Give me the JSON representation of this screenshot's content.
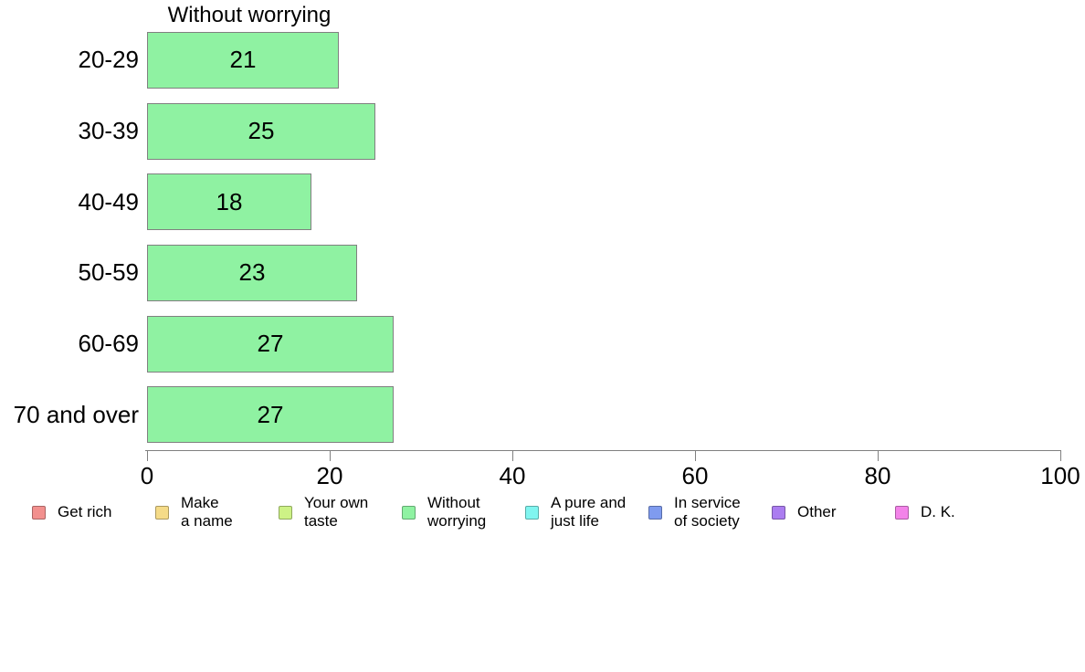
{
  "chart_data": {
    "type": "bar",
    "orientation": "horizontal",
    "title": "Without worrying",
    "categories": [
      "20-29",
      "30-39",
      "40-49",
      "50-59",
      "60-69",
      "70 and over"
    ],
    "values": [
      21,
      25,
      18,
      23,
      27,
      27
    ],
    "xlabel": "",
    "ylabel": "",
    "xlim": [
      0,
      100
    ],
    "xticks": [
      0,
      20,
      40,
      60,
      80,
      100
    ],
    "grid": false,
    "value_labels_shown": true,
    "bar_color": "#8ff2a2",
    "bar_border_color": "#808080",
    "axis_color": "#808080",
    "text_color": "#000000",
    "legend_position": "bottom",
    "legend": [
      {
        "label": "Get rich",
        "color": "#f2908e"
      },
      {
        "label": "Make\na name",
        "color": "#f5db88"
      },
      {
        "label": "Your own\ntaste",
        "color": "#cdf286"
      },
      {
        "label": "Without\nworrying",
        "color": "#8ff2a2"
      },
      {
        "label": "A pure and\njust life",
        "color": "#80f5f0"
      },
      {
        "label": "In service\nof society",
        "color": "#7f9bef"
      },
      {
        "label": "Other",
        "color": "#ab7df0"
      },
      {
        "label": "D. K.",
        "color": "#f383e9"
      }
    ]
  }
}
